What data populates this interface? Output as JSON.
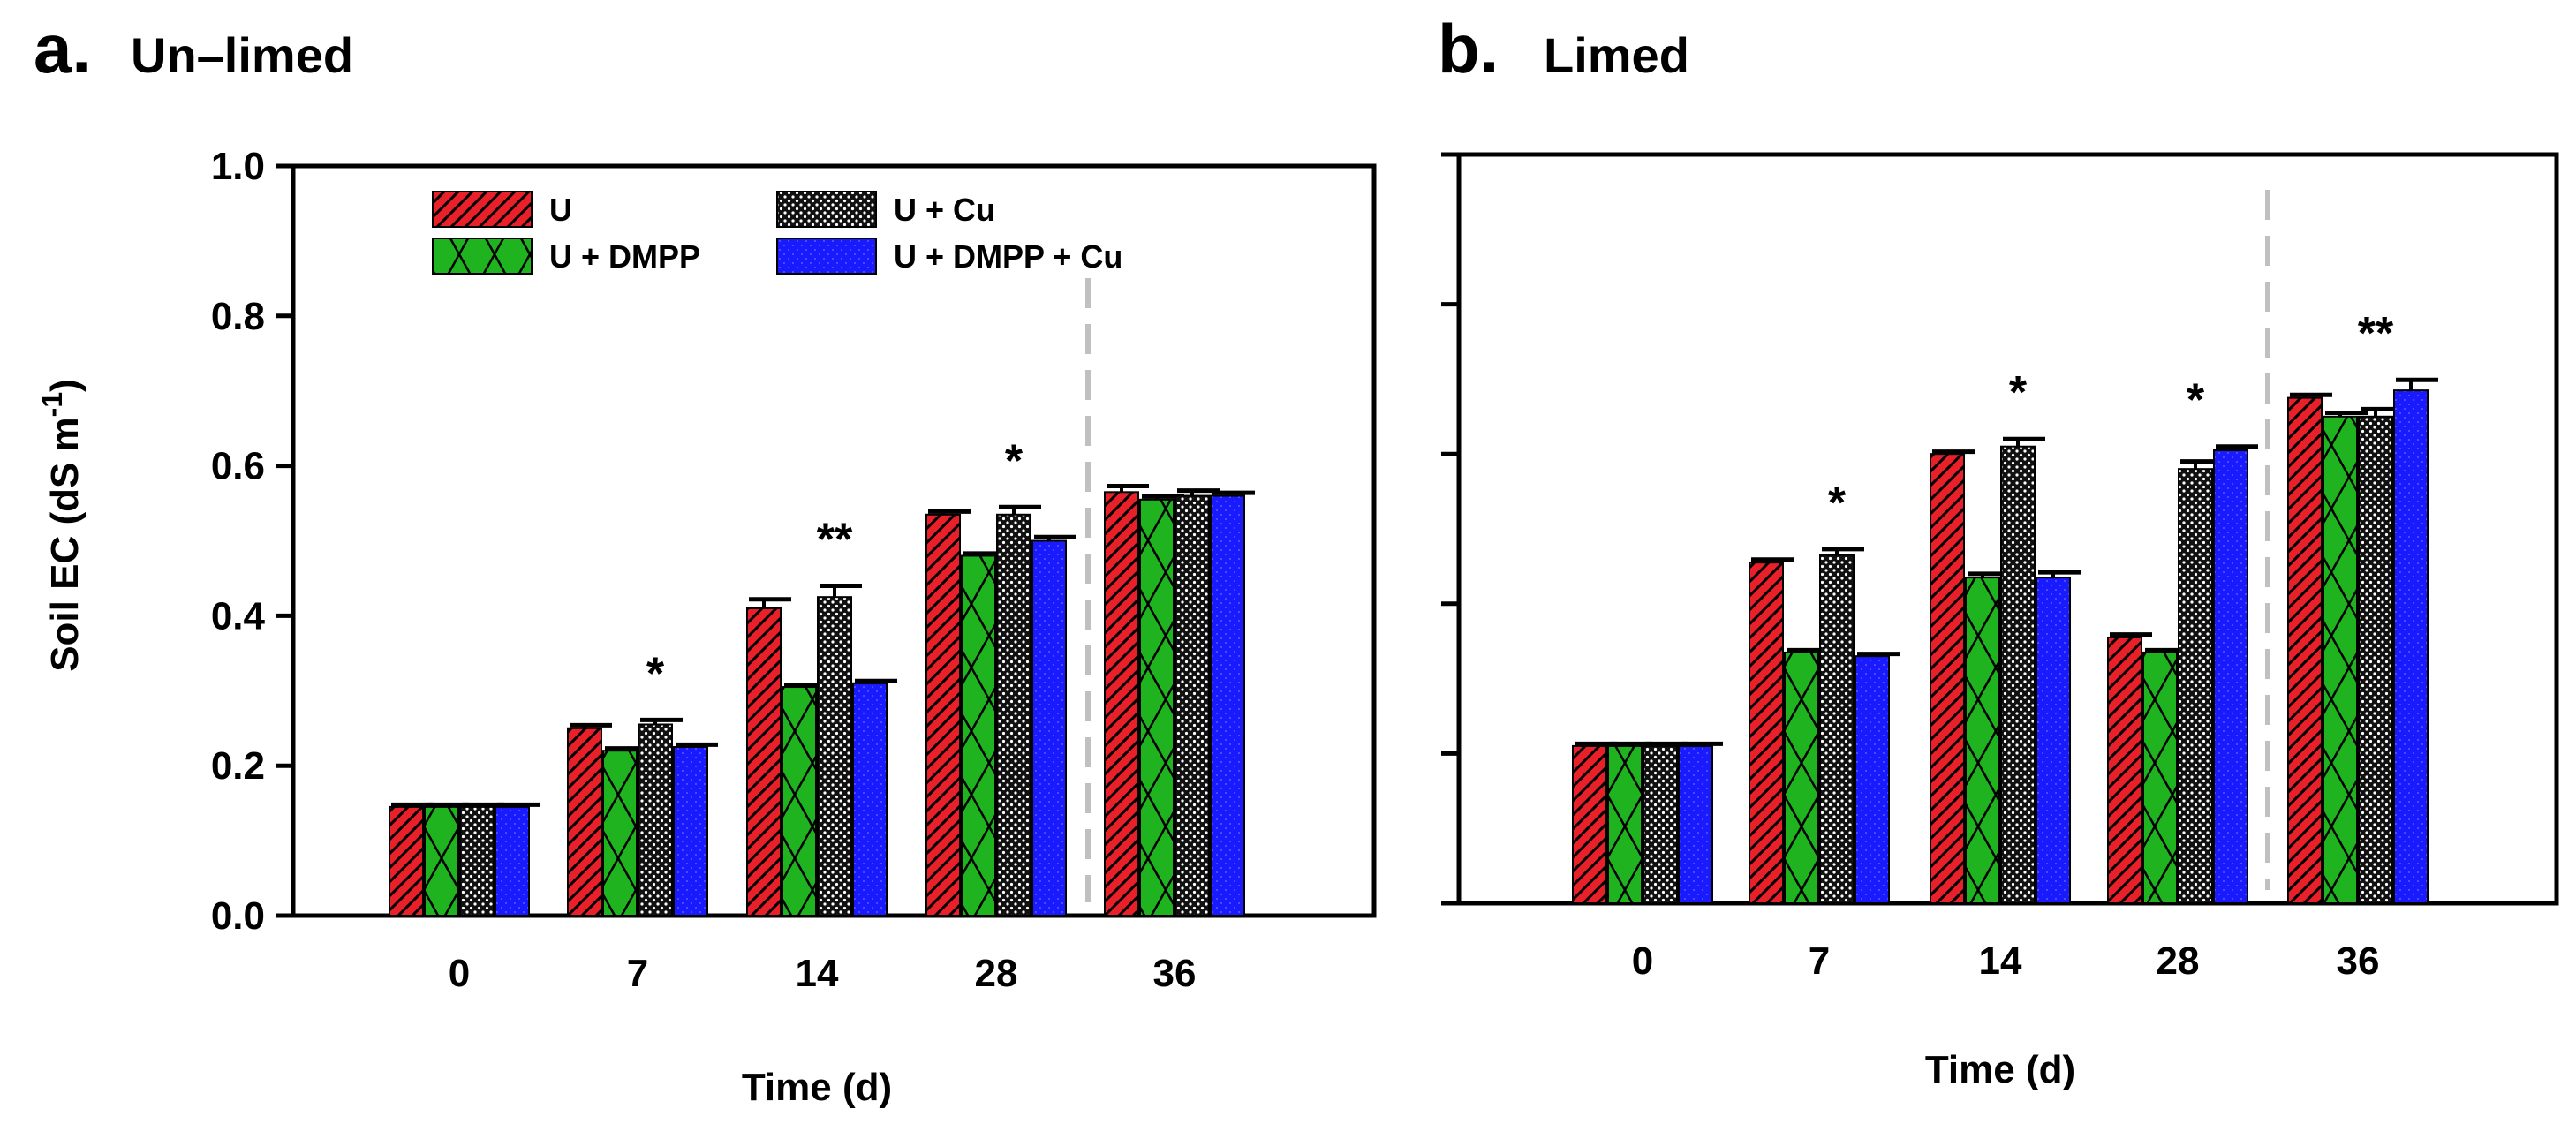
{
  "chart_data": [
    {
      "type": "bar",
      "panel_letter": "a.",
      "title": "Un–limed",
      "xlabel": "Time (d)",
      "ylabel": "Soil EC (dS m",
      "ylabel_sup": "-1",
      "ylabel_close": ")",
      "ylim": [
        0,
        1.0
      ],
      "y_ticks": [
        "0.0",
        "0.2",
        "0.4",
        "0.6",
        "0.8",
        "1.0"
      ],
      "categories": [
        "0",
        "7",
        "14",
        "28",
        "36"
      ],
      "divider_between": [
        3,
        4
      ],
      "series": [
        {
          "name": "U",
          "values": [
            0.145,
            0.25,
            0.41,
            0.535,
            0.565
          ],
          "errors": [
            0.003,
            0.004,
            0.012,
            0.004,
            0.008
          ]
        },
        {
          "name": "U + DMPP",
          "values": [
            0.145,
            0.22,
            0.305,
            0.48,
            0.555
          ],
          "errors": [
            0.003,
            0.003,
            0.003,
            0.003,
            0.004
          ]
        },
        {
          "name": "U + Cu",
          "values": [
            0.145,
            0.255,
            0.425,
            0.535,
            0.56
          ],
          "errors": [
            0.003,
            0.006,
            0.015,
            0.01,
            0.007
          ]
        },
        {
          "name": "U + DMPP + Cu",
          "values": [
            0.145,
            0.225,
            0.31,
            0.5,
            0.56
          ],
          "errors": [
            0.003,
            0.003,
            0.003,
            0.005,
            0.004
          ]
        }
      ],
      "significance": [
        "",
        "*",
        "**",
        "*",
        ""
      ]
    },
    {
      "type": "bar",
      "panel_letter": "b.",
      "title": "Limed",
      "xlabel": "Time (d)",
      "ylim": [
        0,
        1.0
      ],
      "categories": [
        "0",
        "7",
        "14",
        "28",
        "36"
      ],
      "divider_between": [
        3,
        4
      ],
      "series": [
        {
          "name": "U",
          "values": [
            0.21,
            0.455,
            0.6,
            0.355,
            0.675
          ],
          "errors": [
            0.003,
            0.004,
            0.003,
            0.004,
            0.004
          ]
        },
        {
          "name": "U + DMPP",
          "values": [
            0.21,
            0.335,
            0.435,
            0.335,
            0.65
          ],
          "errors": [
            0.003,
            0.003,
            0.005,
            0.003,
            0.005
          ]
        },
        {
          "name": "U + Cu",
          "values": [
            0.21,
            0.465,
            0.61,
            0.58,
            0.65
          ],
          "errors": [
            0.003,
            0.008,
            0.01,
            0.01,
            0.01
          ]
        },
        {
          "name": "U + DMPP + Cu",
          "values": [
            0.21,
            0.33,
            0.435,
            0.605,
            0.685
          ],
          "errors": [
            0.003,
            0.003,
            0.007,
            0.005,
            0.014
          ]
        }
      ],
      "significance": [
        "",
        "*",
        "*",
        "*",
        "**"
      ]
    }
  ],
  "colors": {
    "U": "#e8202a",
    "U + DMPP": "#1fb41f",
    "U + Cu": "#222222",
    "U + DMPP + Cu": "#1a1aff",
    "divider": "#c0c0c0"
  }
}
